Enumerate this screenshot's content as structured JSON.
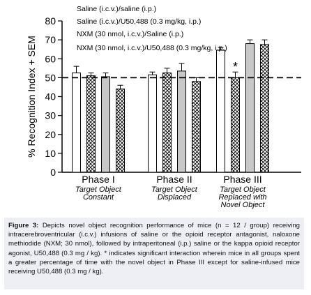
{
  "chart_data": {
    "type": "bar",
    "ylabel": "% Recognition Index + SEM",
    "ylim": [
      0,
      80
    ],
    "yticks": [
      0,
      10,
      20,
      30,
      40,
      50,
      60,
      70,
      80
    ],
    "reference_line": 50,
    "categories": [
      {
        "name": "Phase I",
        "sub": [
          "Target Object",
          "Constant"
        ]
      },
      {
        "name": "Phase II",
        "sub": [
          "Target Object",
          "Displaced"
        ]
      },
      {
        "name": "Phase III",
        "sub": [
          "Target Object",
          "Replaced with",
          "Novel Object"
        ]
      }
    ],
    "series": [
      {
        "name": "Saline (i.c.v.)/saline (i.p.)",
        "values": [
          52.5,
          51.5,
          64.5
        ],
        "errors": [
          3.5,
          1.5,
          1.5
        ],
        "fill": "white"
      },
      {
        "name": "Saline (i.c.v.)/U50,488 (0.3 mg/kg, i.p.)",
        "values": [
          51,
          52.5,
          50
        ],
        "errors": [
          1.5,
          2.5,
          3
        ],
        "fill": "crosshatch"
      },
      {
        "name": "NXM (30 nmol, i.c.v.)/Saline (i.p.)",
        "values": [
          50.5,
          53.5,
          68
        ],
        "errors": [
          2.0,
          4.0,
          2.0
        ],
        "fill": "gray"
      },
      {
        "name": "NXM (30 nmol, i.c.v.)/U50,488 (0.3 mg/kg, i.p.)",
        "values": [
          44,
          48,
          67.5
        ],
        "errors": [
          2.0,
          2.0,
          2.5
        ],
        "fill": "crosshatch"
      }
    ],
    "annotations": [
      {
        "text": "*",
        "category": 2,
        "series": 1
      }
    ],
    "legend_position": "top",
    "colors": {
      "gray": "#c8c8c8",
      "stroke": "#000000",
      "hatch": "#000000"
    }
  },
  "caption": {
    "label": "Figure 3:",
    "text": " Depicts novel object recognition performance of mice (n = 12 / group) receiving intracerebroventricular (i.c.v.) infusions of saline or the opioid receptor antagonist, naloxone methiodide (NXM; 30 nmol), followed by intraperitoneal (i.p.) saline or the kappa opioid receptor agonist, U50,488 (0.3 mg / kg). * indicates significant interaction wherein mice in all groups spent a greater percentage of time with the novel object in Phase III except for saline-infused mice receiving U50,488 (0.3 mg / kg)."
  }
}
